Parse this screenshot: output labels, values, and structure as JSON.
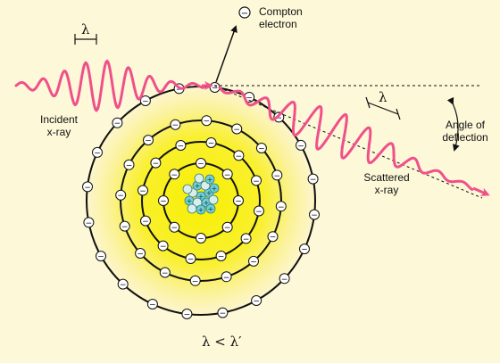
{
  "labels": {
    "compton_line1": "Compton",
    "compton_line2": "electron",
    "incident_line1": "Incident",
    "incident_line2": "x-ray",
    "scattered_line1": "Scattered",
    "scattered_line2": "x-ray",
    "angle_line1": "Angle of",
    "angle_line2": "deflection",
    "lambda_incident": "λ",
    "lambda_scattered": "λ",
    "relation": "λ < λ′"
  },
  "symbols": {
    "electron": "−",
    "proton": "+"
  },
  "colors": {
    "background": "#fdf8d8",
    "wave": "#f0508a",
    "atom_core": "#f7ef00",
    "atom_edge": "#fdf6d2",
    "nucleus": "#6fd0d8"
  }
}
